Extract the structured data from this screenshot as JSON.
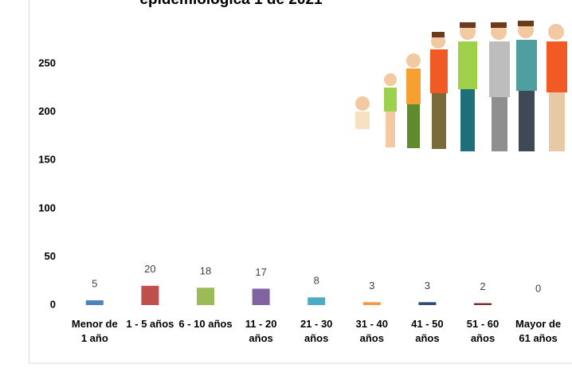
{
  "chart_data": {
    "type": "bar",
    "title": "epidemiológica 1 de 2021",
    "categories": [
      "Menor de 1 año",
      "1 - 5 años",
      "6 - 10 años",
      "11 - 20 años",
      "21 - 30 años",
      "31 - 40 años",
      "41 - 50 años",
      "51 - 60 años",
      "Mayor de 61 años"
    ],
    "values": [
      5,
      20,
      18,
      17,
      8,
      3,
      3,
      2,
      0
    ],
    "colors": [
      "#4f81bd",
      "#c0504d",
      "#9bbb59",
      "#8064a2",
      "#4bacc6",
      "#f79646",
      "#2c4d75",
      "#772c2a",
      "#5f7530"
    ],
    "ylim": [
      0,
      300
    ],
    "yticks": [
      0,
      50,
      100,
      150,
      200,
      250
    ],
    "grid": false
  }
}
